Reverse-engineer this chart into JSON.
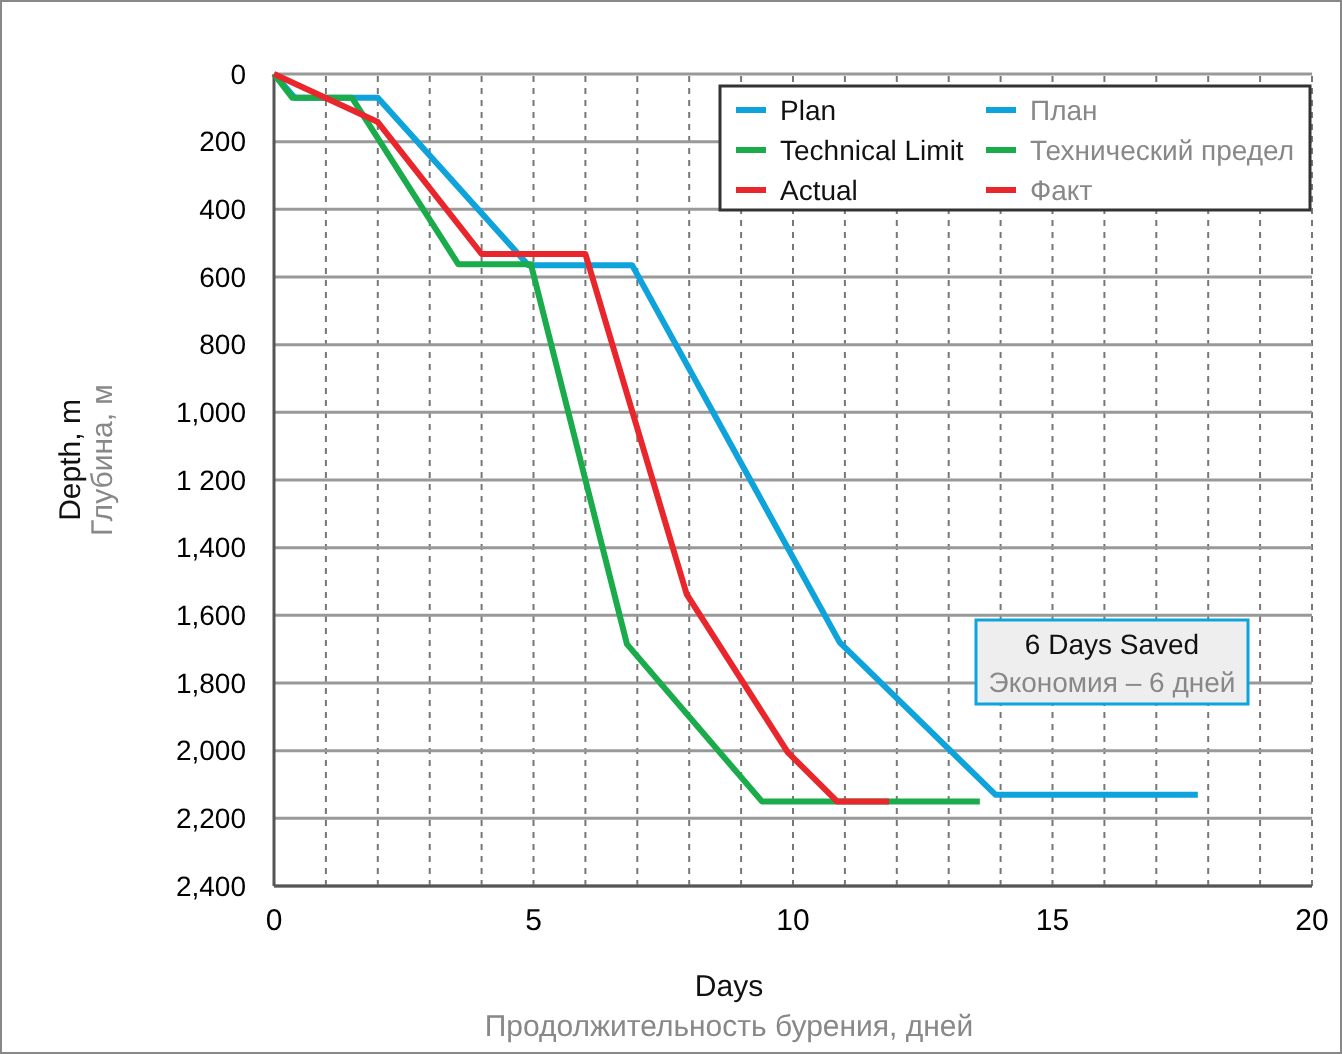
{
  "chart_data": {
    "type": "line",
    "xlabel": "Days\nПродолжительность бурения, дней",
    "ylabel": "Depth, m\nГлубина, м",
    "xlim": [
      0,
      20
    ],
    "xticks": [
      0,
      5,
      10,
      15,
      20
    ],
    "ylim": [
      2400,
      0
    ],
    "yticks": [
      0,
      200,
      400,
      600,
      800,
      {
        "value": 1000,
        "label": "1,000"
      },
      {
        "value": 1200,
        "label": "1 200"
      },
      {
        "value": 1400,
        "label": "1,400"
      },
      {
        "value": 1600,
        "label": "1,600"
      },
      {
        "value": 1800,
        "label": "1,800"
      },
      {
        "value": 2000,
        "label": "2,000"
      },
      {
        "value": 2200,
        "label": "2,200"
      },
      {
        "value": 2400,
        "label": "2,400"
      }
    ],
    "grid": true,
    "legend": "top right",
    "line_style": "solid",
    "marker": "none",
    "series": [
      {
        "name": "Plan",
        "color": "#0fa3dc",
        "x": [
          0,
          0.4,
          2,
          4.9,
          6.9,
          10.9,
          13.9,
          17.8
        ],
        "values": [
          0,
          70,
          70,
          565,
          565,
          1680,
          2130,
          2130
        ]
      },
      {
        "name": "Technical Limit",
        "color": "#1aab4b",
        "x": [
          0,
          0.35,
          1.5,
          3.55,
          4.95,
          6.8,
          9.4,
          13.6
        ],
        "values": [
          0,
          70,
          70,
          562,
          562,
          1685,
          2150,
          2150
        ]
      },
      {
        "name": "Actual",
        "color": "#e8262c",
        "x": [
          0,
          2,
          4,
          6,
          7.95,
          9.9,
          10.85,
          11.85
        ],
        "values": [
          0,
          142,
          532,
          532,
          1537,
          2005,
          2150,
          2150
        ]
      }
    ],
    "annotations": [
      "План",
      "Технический предел",
      "Факт",
      "6 Days Saved\nЭкономия – 6 дней"
    ]
  }
}
